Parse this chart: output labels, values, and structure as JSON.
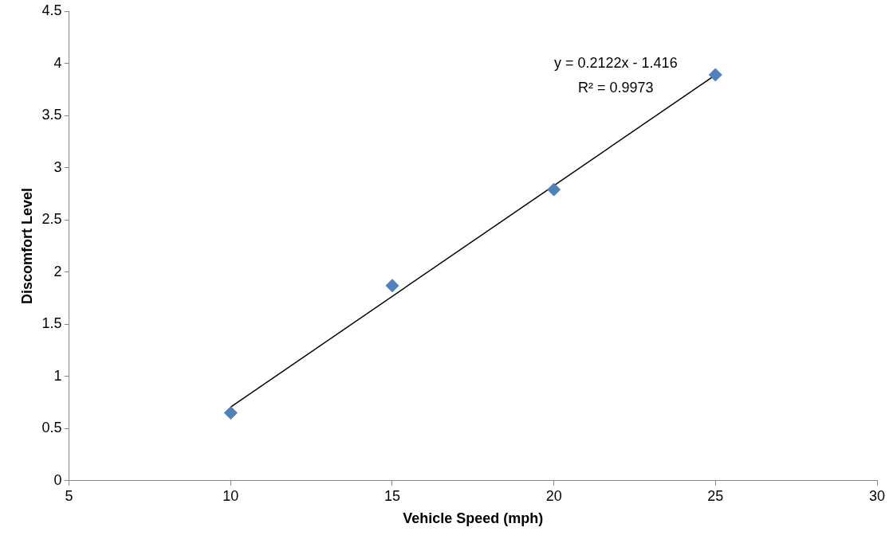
{
  "chart_data": {
    "type": "scatter",
    "xlabel": "Vehicle Speed (mph)",
    "ylabel": "Discomfort Level",
    "xlim": [
      5,
      30
    ],
    "xticks": [
      5,
      10,
      15,
      20,
      25,
      30
    ],
    "ylim": [
      0,
      4.5
    ],
    "yticks": [
      0,
      0.5,
      1,
      1.5,
      2,
      2.5,
      3,
      3.5,
      4,
      4.5
    ],
    "grid": false,
    "legend": false,
    "marker": "diamond",
    "series": [
      {
        "color": "#4f81bd",
        "x": [
          10,
          15,
          20,
          25
        ],
        "values": [
          0.65,
          1.87,
          2.79,
          3.89
        ]
      },
      {
        "type": "line",
        "color": "#000000",
        "x": [
          10,
          25
        ],
        "values": [
          0.706,
          3.889
        ],
        "marker": "none"
      }
    ],
    "annotations": [
      "y = 0.2122x - 1.416",
      "R² = 0.9973"
    ]
  }
}
